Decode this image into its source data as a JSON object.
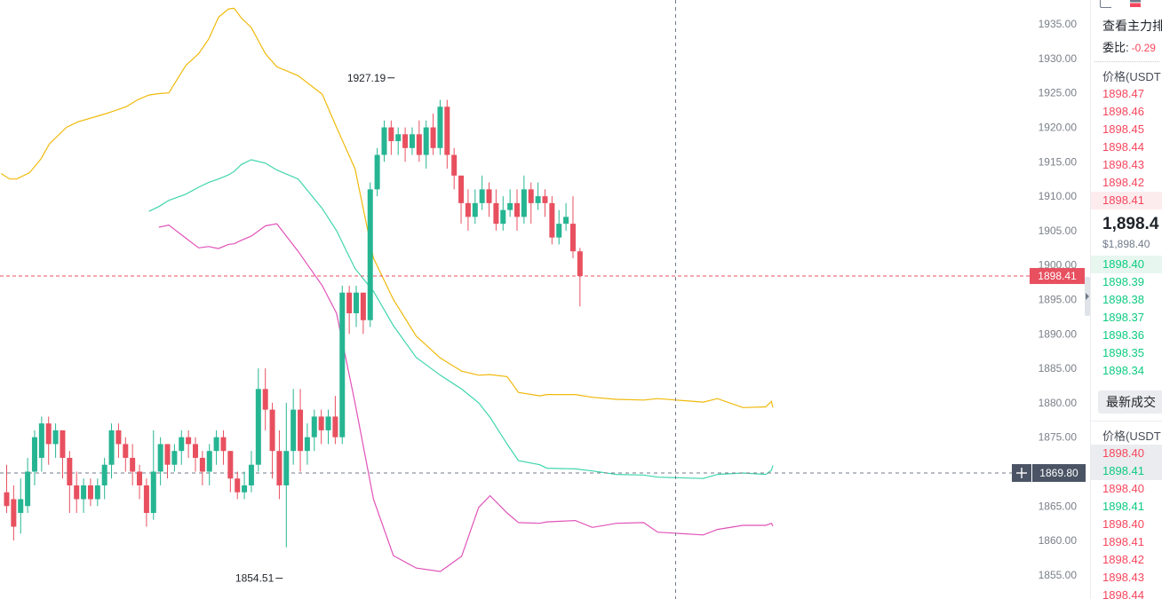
{
  "chart_data": {
    "type": "candlestick",
    "y_ticks": [
      "1935.00",
      "1930.00",
      "1925.00",
      "1920.00",
      "1915.00",
      "1910.00",
      "1905.00",
      "1900.00",
      "1895.00",
      "1890.00",
      "1885.00",
      "1880.00",
      "1875.00",
      "1870.00",
      "1865.00",
      "1860.00",
      "1855.00"
    ],
    "ylim": [
      1851.5,
      1938.5
    ],
    "current_price_label": "1898.41",
    "current_price": 1898.41,
    "crosshair_label": "1869.80",
    "crosshair_price": 1869.8,
    "high_annotation": "1927.19",
    "high_value": 1927.19,
    "low_annotation": "1854.51",
    "low_value": 1854.51,
    "grid": false,
    "candles": [
      [
        1867,
        1865,
        1871,
        1864
      ],
      [
        1866,
        1862,
        1868,
        1860
      ],
      [
        1864,
        1866,
        1869,
        1861
      ],
      [
        1865,
        1870,
        1872,
        1864
      ],
      [
        1870,
        1875,
        1876,
        1868
      ],
      [
        1872,
        1877,
        1878,
        1870
      ],
      [
        1877,
        1874,
        1878,
        1871
      ],
      [
        1874,
        1876,
        1877,
        1872
      ],
      [
        1876,
        1872,
        1876,
        1869
      ],
      [
        1872,
        1868,
        1873,
        1864
      ],
      [
        1868,
        1866,
        1870,
        1864
      ],
      [
        1866,
        1868,
        1869,
        1864
      ],
      [
        1868,
        1866,
        1869,
        1865
      ],
      [
        1866,
        1868,
        1869,
        1865
      ],
      [
        1868,
        1871,
        1872,
        1866
      ],
      [
        1871,
        1876,
        1877,
        1869
      ],
      [
        1876,
        1874,
        1877,
        1872
      ],
      [
        1874,
        1872,
        1875,
        1870
      ],
      [
        1872,
        1870,
        1874,
        1868
      ],
      [
        1870,
        1868,
        1871,
        1866
      ],
      [
        1868,
        1864,
        1869,
        1862
      ],
      [
        1864,
        1870,
        1876,
        1863
      ],
      [
        1870,
        1874,
        1875,
        1868
      ],
      [
        1874,
        1871,
        1874,
        1869
      ],
      [
        1871,
        1873,
        1874,
        1870
      ],
      [
        1873,
        1875,
        1876,
        1871
      ],
      [
        1875,
        1874,
        1876,
        1872
      ],
      [
        1874,
        1872,
        1875,
        1870
      ],
      [
        1872,
        1870,
        1873,
        1868
      ],
      [
        1870,
        1873,
        1874,
        1868
      ],
      [
        1873,
        1875,
        1876,
        1871
      ],
      [
        1875,
        1873,
        1876,
        1871
      ],
      [
        1873,
        1869,
        1873,
        1867
      ],
      [
        1869,
        1867,
        1870,
        1866
      ],
      [
        1867,
        1868,
        1870,
        1866
      ],
      [
        1868,
        1871,
        1873,
        1867
      ],
      [
        1871,
        1882,
        1885,
        1870
      ],
      [
        1882,
        1879,
        1885,
        1876
      ],
      [
        1879,
        1873,
        1880,
        1869
      ],
      [
        1873,
        1868,
        1876,
        1866
      ],
      [
        1868,
        1873,
        1880,
        1859
      ],
      [
        1873,
        1879,
        1882,
        1871
      ],
      [
        1879,
        1873,
        1882,
        1870
      ],
      [
        1873,
        1875,
        1877,
        1871
      ],
      [
        1875,
        1878,
        1879,
        1873
      ],
      [
        1878,
        1876,
        1879,
        1874
      ],
      [
        1876,
        1878,
        1879,
        1874
      ],
      [
        1878,
        1875,
        1881,
        1874
      ],
      [
        1875,
        1896,
        1897,
        1874
      ],
      [
        1896,
        1893,
        1897,
        1890
      ],
      [
        1893,
        1896,
        1897,
        1891
      ],
      [
        1896,
        1892,
        1896,
        1890
      ],
      [
        1892,
        1911,
        1912,
        1891
      ],
      [
        1911,
        1916,
        1917,
        1910
      ],
      [
        1916,
        1920,
        1921,
        1915
      ],
      [
        1920,
        1918,
        1921,
        1916
      ],
      [
        1918,
        1919,
        1920,
        1916
      ],
      [
        1919,
        1917,
        1920,
        1915
      ],
      [
        1917,
        1919,
        1920,
        1916
      ],
      [
        1919,
        1916,
        1921,
        1915
      ],
      [
        1916,
        1920,
        1921,
        1914
      ],
      [
        1920,
        1917,
        1922,
        1916
      ],
      [
        1917,
        1923,
        1924,
        1916
      ],
      [
        1923,
        1916,
        1924,
        1914
      ],
      [
        1916,
        1913,
        1917,
        1911
      ],
      [
        1913,
        1909,
        1913,
        1906
      ],
      [
        1909,
        1907,
        1911,
        1905
      ],
      [
        1907,
        1909,
        1911,
        1906
      ],
      [
        1909,
        1911,
        1913,
        1908
      ],
      [
        1911,
        1909,
        1912,
        1907
      ],
      [
        1909,
        1906,
        1911,
        1905
      ],
      [
        1906,
        1908,
        1910,
        1905
      ],
      [
        1908,
        1909,
        1911,
        1907
      ],
      [
        1909,
        1907,
        1911,
        1905
      ],
      [
        1907,
        1911,
        1913,
        1906
      ],
      [
        1911,
        1909,
        1912,
        1906
      ],
      [
        1909,
        1910,
        1912,
        1908
      ],
      [
        1910,
        1909,
        1911,
        1907
      ],
      [
        1909,
        1904,
        1910,
        1903
      ],
      [
        1904,
        1906,
        1908,
        1903
      ],
      [
        1906,
        1907,
        1909,
        1905
      ],
      [
        1906,
        1902,
        1910,
        1901
      ],
      [
        1902,
        1898.41,
        1902.5,
        1894
      ]
    ],
    "bands": {
      "upper": [
        [
          1879,
          1879.3
        ],
        [
          1878,
          1880.2
        ],
        [
          1874,
          1879.4
        ],
        [
          1858,
          1879.3
        ],
        [
          1840,
          1880.6
        ],
        [
          1830,
          1880.1
        ],
        [
          1798,
          1880.6
        ],
        [
          1788,
          1880.4
        ],
        [
          1769,
          1880.5
        ],
        [
          1752,
          1880.8
        ],
        [
          1740,
          1881.2
        ],
        [
          1720,
          1881.2
        ],
        [
          1715,
          1881
        ],
        [
          1700,
          1881.5
        ],
        [
          1692,
          1883.8
        ],
        [
          1680,
          1884.1
        ],
        [
          1672,
          1884
        ],
        [
          1660,
          1884.6
        ],
        [
          1645,
          1886.5
        ],
        [
          1628,
          1889.7
        ],
        [
          1612,
          1895
        ],
        [
          1598,
          1901
        ],
        [
          1585,
          1914
        ],
        [
          1572,
          1920
        ],
        [
          1562,
          1924.8
        ],
        [
          1545,
          1927.5
        ],
        [
          1530,
          1928.8
        ],
        [
          1522,
          1930.7
        ],
        [
          1512,
          1934.5
        ],
        [
          1505,
          1935.9
        ],
        [
          1500,
          1937.3
        ],
        [
          1496,
          1937.2
        ],
        [
          1489,
          1936
        ],
        [
          1482,
          1932.8
        ],
        [
          1475,
          1930.7
        ],
        [
          1466,
          1929
        ],
        [
          1454,
          1925
        ],
        [
          1447,
          1924.9
        ],
        [
          1440,
          1924.7
        ],
        [
          1432,
          1924
        ],
        [
          1424,
          1923
        ],
        [
          1410,
          1922
        ],
        [
          1390,
          1920.8
        ],
        [
          1382,
          1920
        ],
        [
          1370,
          1917.6
        ],
        [
          1364,
          1915.4
        ],
        [
          1356,
          1913.4
        ],
        [
          1347,
          1912.5
        ],
        [
          1342,
          1912.5
        ],
        [
          1336,
          1913.3
        ]
      ],
      "middle": [
        [
          1879,
          1870.9
        ],
        [
          1878,
          1870.2
        ],
        [
          1874,
          1869.6
        ],
        [
          1858,
          1869.8
        ],
        [
          1840,
          1869.6
        ],
        [
          1830,
          1869
        ],
        [
          1798,
          1869.2
        ],
        [
          1788,
          1869.5
        ],
        [
          1769,
          1869.6
        ],
        [
          1752,
          1870.1
        ],
        [
          1740,
          1870.4
        ],
        [
          1720,
          1870.5
        ],
        [
          1715,
          1871
        ],
        [
          1700,
          1871.6
        ],
        [
          1692,
          1874
        ],
        [
          1680,
          1877.9
        ],
        [
          1672,
          1880
        ],
        [
          1660,
          1882
        ],
        [
          1645,
          1884
        ],
        [
          1628,
          1886.6
        ],
        [
          1612,
          1891.2
        ],
        [
          1598,
          1896.2
        ],
        [
          1585,
          1899.5
        ],
        [
          1572,
          1905
        ],
        [
          1562,
          1908.2
        ],
        [
          1545,
          1912.5
        ],
        [
          1530,
          1913.8
        ],
        [
          1522,
          1914.8
        ],
        [
          1512,
          1915.3
        ],
        [
          1505,
          1914.6
        ],
        [
          1500,
          1913.6
        ],
        [
          1496,
          1913.1
        ],
        [
          1489,
          1912.5
        ],
        [
          1482,
          1912
        ],
        [
          1475,
          1911.3
        ],
        [
          1466,
          1910.3
        ],
        [
          1454,
          1909.4
        ],
        [
          1447,
          1908.5
        ],
        [
          1440,
          1907.8
        ]
      ],
      "lower": [
        [
          1879,
          1862.1
        ],
        [
          1878,
          1862.5
        ],
        [
          1874,
          1862.2
        ],
        [
          1858,
          1862.2
        ],
        [
          1840,
          1861.6
        ],
        [
          1830,
          1860.8
        ],
        [
          1798,
          1861.2
        ],
        [
          1788,
          1862.6
        ],
        [
          1769,
          1862.5
        ],
        [
          1752,
          1861.9
        ],
        [
          1740,
          1862.9
        ],
        [
          1720,
          1862.7
        ],
        [
          1715,
          1862.5
        ],
        [
          1700,
          1862.6
        ],
        [
          1692,
          1864
        ],
        [
          1680,
          1866.5
        ],
        [
          1672,
          1864.8
        ],
        [
          1660,
          1857.7
        ],
        [
          1645,
          1855.5
        ],
        [
          1628,
          1856
        ],
        [
          1612,
          1857.8
        ],
        [
          1598,
          1866
        ],
        [
          1585,
          1880
        ],
        [
          1572,
          1893
        ],
        [
          1562,
          1897
        ],
        [
          1545,
          1902
        ],
        [
          1530,
          1906
        ],
        [
          1522,
          1905.7
        ],
        [
          1512,
          1904.2
        ],
        [
          1505,
          1903.6
        ],
        [
          1500,
          1903.1
        ],
        [
          1496,
          1903
        ],
        [
          1489,
          1902.4
        ],
        [
          1482,
          1902.7
        ],
        [
          1475,
          1902.5
        ],
        [
          1466,
          1903.9
        ],
        [
          1454,
          1905.8
        ],
        [
          1447,
          1905.5
        ]
      ]
    }
  },
  "side": {
    "title": "查看主力排",
    "ratio_label": "委比:",
    "ratio_value": "-0.29",
    "col_price": "价格(USDT",
    "asks": [
      "1898.47",
      "1898.46",
      "1898.45",
      "1898.44",
      "1898.43",
      "1898.42",
      "1898.41"
    ],
    "mid_price": "1,898.4",
    "mid_usd": "$1,898.40",
    "bids": [
      "1898.40",
      "1898.39",
      "1898.38",
      "1898.37",
      "1898.36",
      "1898.35",
      "1898.34"
    ],
    "trades_button": "最新成交",
    "trades_col_price": "价格(USDT",
    "trades": [
      {
        "price": "1898.40",
        "side": "ask"
      },
      {
        "price": "1898.41",
        "side": "bid"
      },
      {
        "price": "1898.40",
        "side": "ask"
      },
      {
        "price": "1898.41",
        "side": "bid"
      },
      {
        "price": "1898.40",
        "side": "ask"
      },
      {
        "price": "1898.41",
        "side": "ask"
      },
      {
        "price": "1898.42",
        "side": "ask"
      },
      {
        "price": "1898.43",
        "side": "ask"
      },
      {
        "price": "1898.44",
        "side": "ask"
      }
    ]
  },
  "colors": {
    "up": "#26b592",
    "down": "#e8505f",
    "upper_band": "#f0b90b",
    "middle_band": "#3fd5ad",
    "lower_band": "#e052b9",
    "price_tag": "#e8505f",
    "crosshair_tag": "#4a5464"
  }
}
